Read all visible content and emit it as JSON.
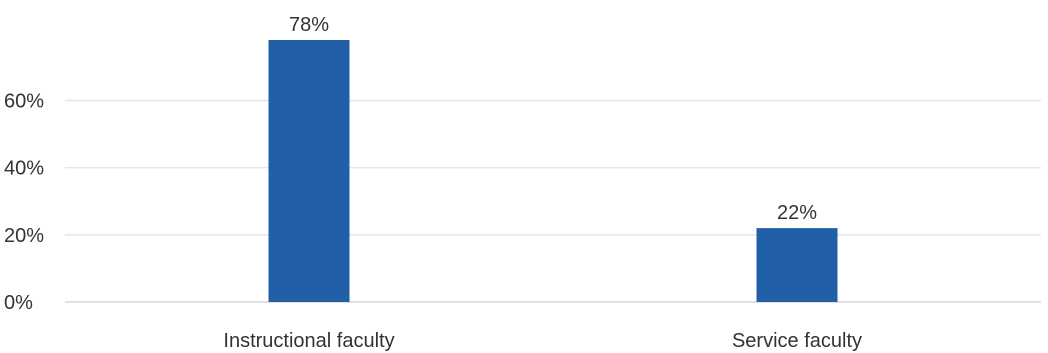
{
  "chart_data": {
    "type": "bar",
    "categories": [
      "Instructional faculty",
      "Service faculty"
    ],
    "values": [
      78,
      22
    ],
    "value_labels": [
      "78%",
      "22%"
    ],
    "ylim": [
      0,
      78
    ],
    "yticks": [
      0,
      20,
      40,
      60
    ],
    "ytick_labels": [
      "0%",
      "20%",
      "40%",
      "60%"
    ],
    "title": "",
    "xlabel": "",
    "ylabel": "",
    "grid": true,
    "legend": "none",
    "colors": {
      "bar": "#215fa8"
    }
  }
}
